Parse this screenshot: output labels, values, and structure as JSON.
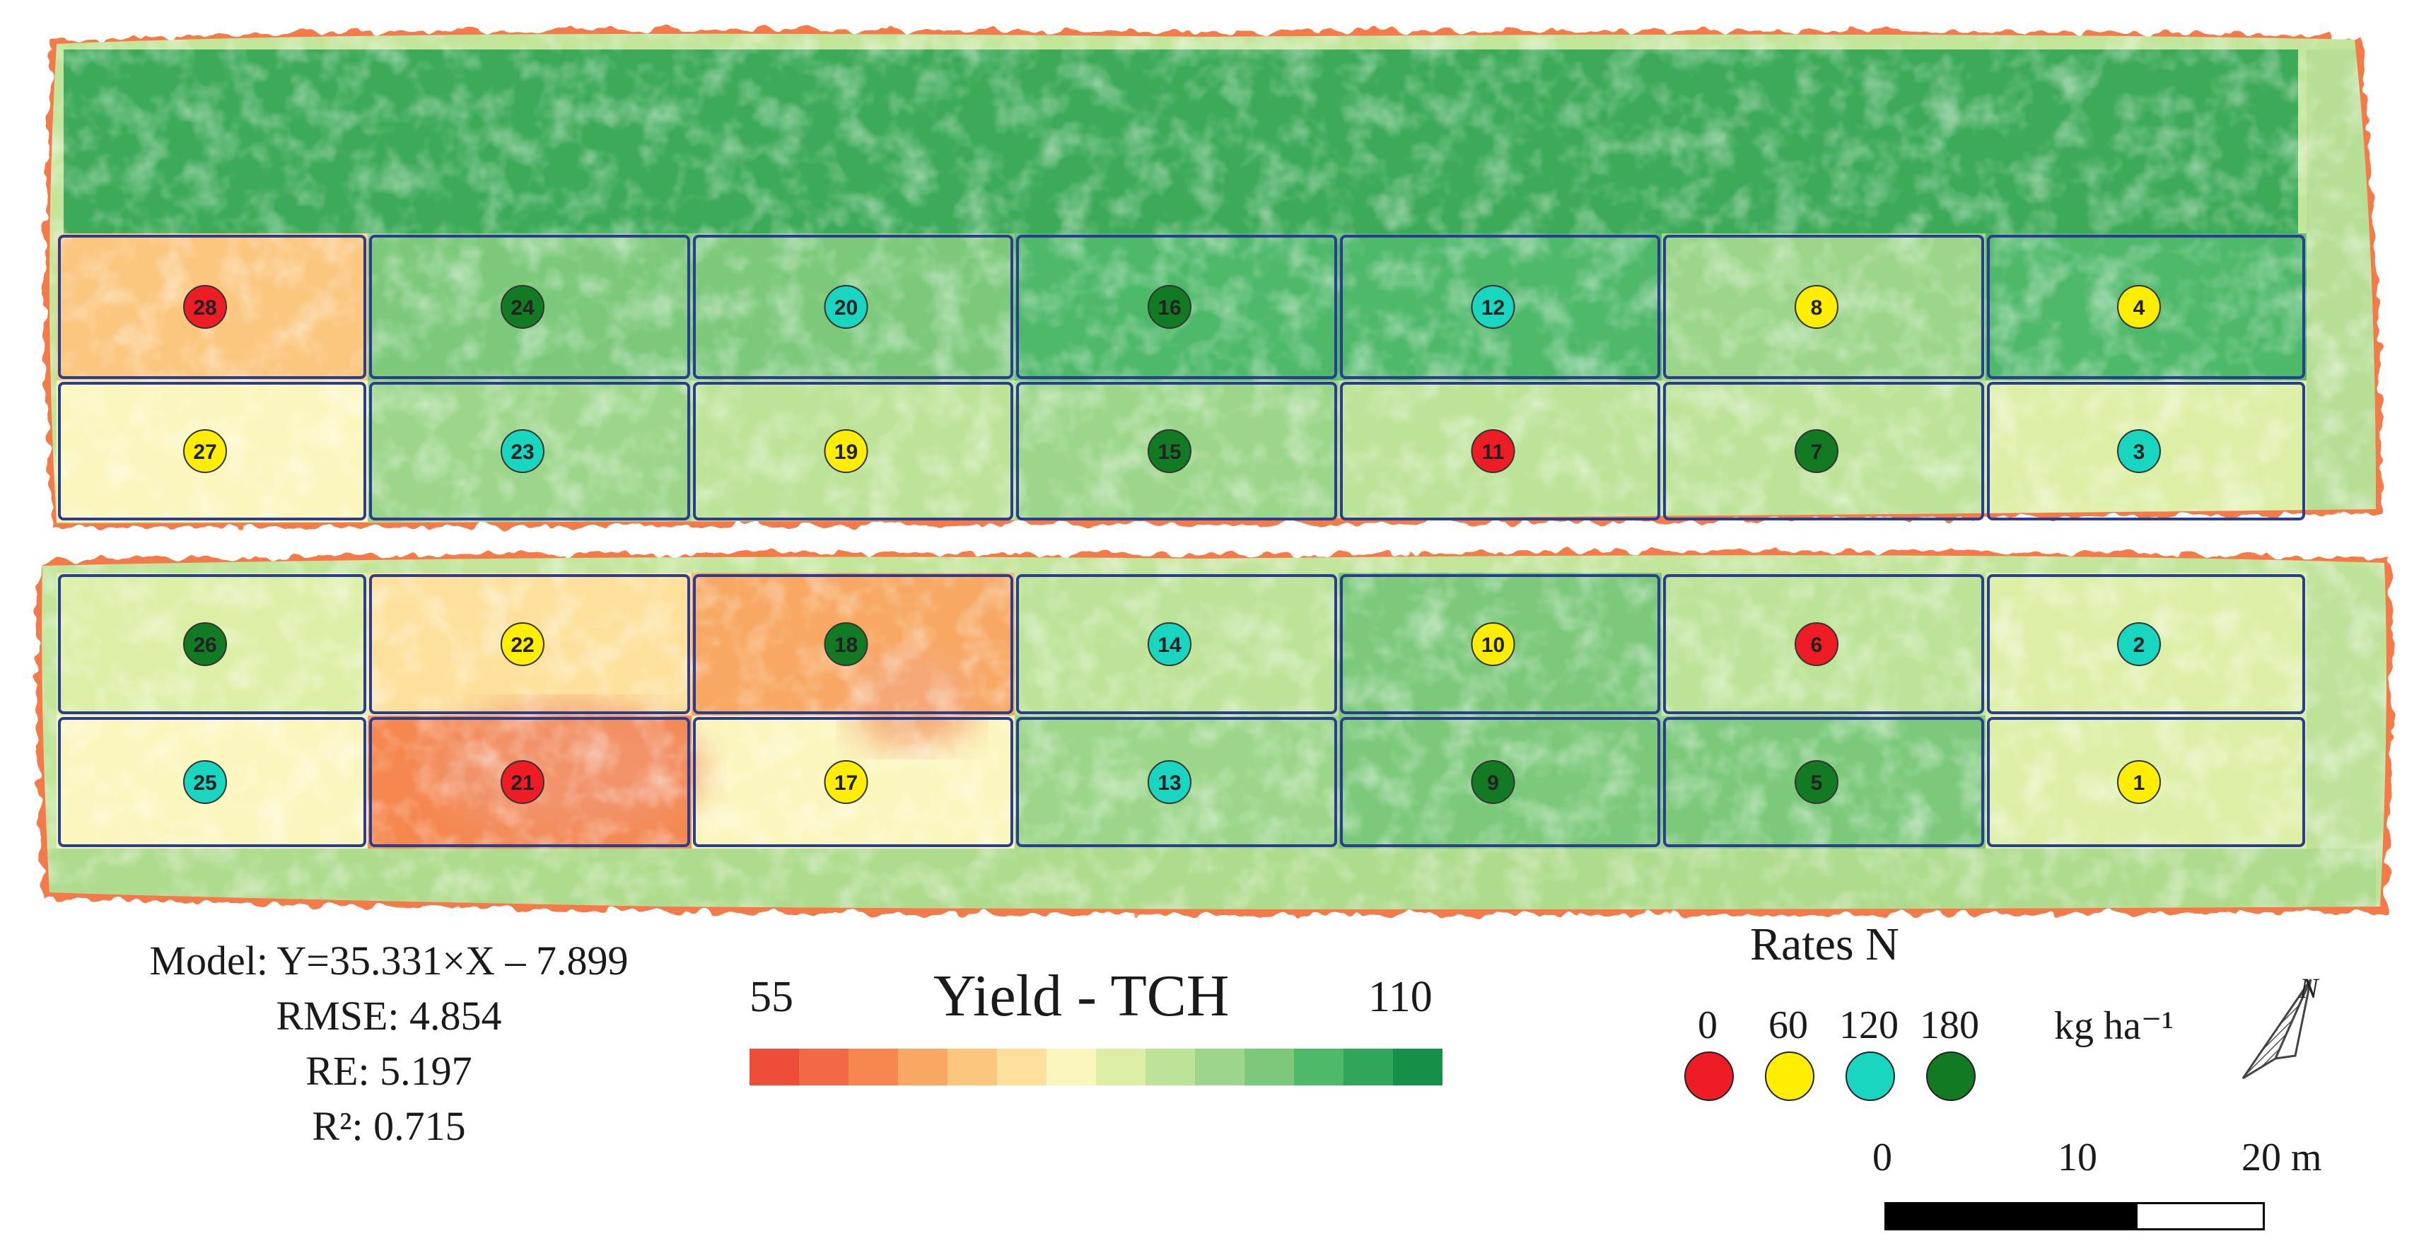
{
  "map": {
    "plots": [
      {
        "n": "28",
        "rate": 0
      },
      {
        "n": "24",
        "rate": 180
      },
      {
        "n": "20",
        "rate": 120
      },
      {
        "n": "16",
        "rate": 180
      },
      {
        "n": "12",
        "rate": 120
      },
      {
        "n": "8",
        "rate": 60
      },
      {
        "n": "4",
        "rate": 60
      },
      {
        "n": "27",
        "rate": 60
      },
      {
        "n": "23",
        "rate": 120
      },
      {
        "n": "19",
        "rate": 60
      },
      {
        "n": "15",
        "rate": 180
      },
      {
        "n": "11",
        "rate": 0
      },
      {
        "n": "7",
        "rate": 180
      },
      {
        "n": "3",
        "rate": 120
      },
      {
        "n": "26",
        "rate": 180
      },
      {
        "n": "22",
        "rate": 60
      },
      {
        "n": "18",
        "rate": 180
      },
      {
        "n": "14",
        "rate": 120
      },
      {
        "n": "10",
        "rate": 60
      },
      {
        "n": "6",
        "rate": 0
      },
      {
        "n": "2",
        "rate": 120
      },
      {
        "n": "25",
        "rate": 120
      },
      {
        "n": "21",
        "rate": 0
      },
      {
        "n": "17",
        "rate": 60
      },
      {
        "n": "13",
        "rate": 120
      },
      {
        "n": "9",
        "rate": 180
      },
      {
        "n": "5",
        "rate": 180
      },
      {
        "n": "1",
        "rate": 60
      }
    ],
    "yield_tch_estimate": [
      [
        72,
        96,
        97,
        100,
        99,
        93,
        99
      ],
      [
        80,
        93,
        90,
        92,
        88,
        90,
        84
      ],
      [
        85,
        78,
        70,
        88,
        95,
        90,
        86
      ],
      [
        82,
        64,
        82,
        94,
        97,
        96,
        85
      ]
    ]
  },
  "model": {
    "equation": "Model: Y=35.331×X – 7.899",
    "rmse": "RMSE: 4.854",
    "re": "RE: 5.197",
    "r2": "R²: 0.715"
  },
  "colorbar": {
    "title": "Yield - TCH",
    "min_label": "55",
    "max_label": "110",
    "min_value": 55,
    "max_value": 110,
    "colors": [
      "#ee4d3a",
      "#f26a45",
      "#f5874f",
      "#f8a862",
      "#fbc67e",
      "#fde09b",
      "#fbf6be",
      "#ddefa7",
      "#bde398",
      "#9cd68a",
      "#7cc97b",
      "#4fb96a",
      "#30a65a",
      "#168f48"
    ]
  },
  "rates": {
    "title": "Rates N",
    "unit": "kg ha⁻¹",
    "levels": [
      {
        "label": "0",
        "value": 0,
        "color": "#ee1c24"
      },
      {
        "label": "60",
        "value": 60,
        "color": "#ffee00"
      },
      {
        "label": "120",
        "value": 120,
        "color": "#19d6c0"
      },
      {
        "label": "180",
        "value": 180,
        "color": "#127a22"
      }
    ]
  },
  "scale": {
    "labels": [
      "0",
      "10",
      "20 m"
    ],
    "segment_colors": [
      "#000000",
      "#000000",
      "#ffffff"
    ]
  },
  "north_label": "N"
}
